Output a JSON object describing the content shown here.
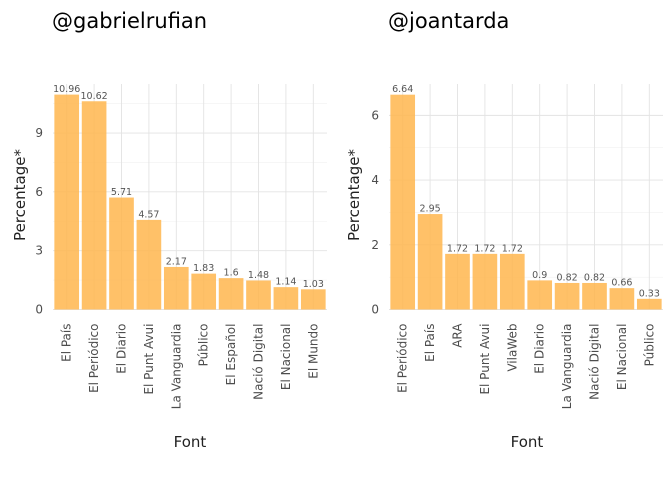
{
  "chart_data": [
    {
      "type": "bar",
      "title": "@gabrielrufian",
      "xlabel": "Font",
      "ylabel": "Percentage*",
      "categories": [
        "El País",
        "El Periódico",
        "El Diario",
        "El Punt Avui",
        "La Vanguardia",
        "Público",
        "El Español",
        "Nació Digital",
        "El Nacional",
        "El Mundo"
      ],
      "values": [
        10.96,
        10.62,
        5.71,
        4.57,
        2.17,
        1.83,
        1.6,
        1.48,
        1.14,
        1.03
      ],
      "value_labels": [
        "10.96",
        "10.62",
        "5.71",
        "4.57",
        "2.17",
        "1.83",
        "1.6",
        "1.48",
        "1.14",
        "1.03"
      ],
      "yticks": [
        0,
        3,
        6,
        9
      ],
      "ytick_labels": [
        "0",
        "3",
        "6",
        "9"
      ],
      "ylim": [
        0,
        11.5
      ],
      "grid": true,
      "bar_color": "#FFB64D"
    },
    {
      "type": "bar",
      "title": "@joantarda",
      "xlabel": "Font",
      "ylabel": "Percentage*",
      "categories": [
        "El Periódico",
        "El País",
        "ARA",
        "El Punt Avui",
        "VilaWeb",
        "El Diario",
        "La Vanguardia",
        "Nació Digital",
        "El Nacional",
        "Público"
      ],
      "values": [
        6.64,
        2.95,
        1.72,
        1.72,
        1.72,
        0.9,
        0.82,
        0.82,
        0.66,
        0.33
      ],
      "value_labels": [
        "6.64",
        "2.95",
        "1.72",
        "1.72",
        "1.72",
        "0.9",
        "0.82",
        "0.82",
        "0.66",
        "0.33"
      ],
      "yticks": [
        0,
        2,
        4,
        6
      ],
      "ytick_labels": [
        "0",
        "2",
        "4",
        "6"
      ],
      "ylim": [
        0,
        6.97
      ],
      "grid": true,
      "bar_color": "#FFB64D"
    }
  ]
}
